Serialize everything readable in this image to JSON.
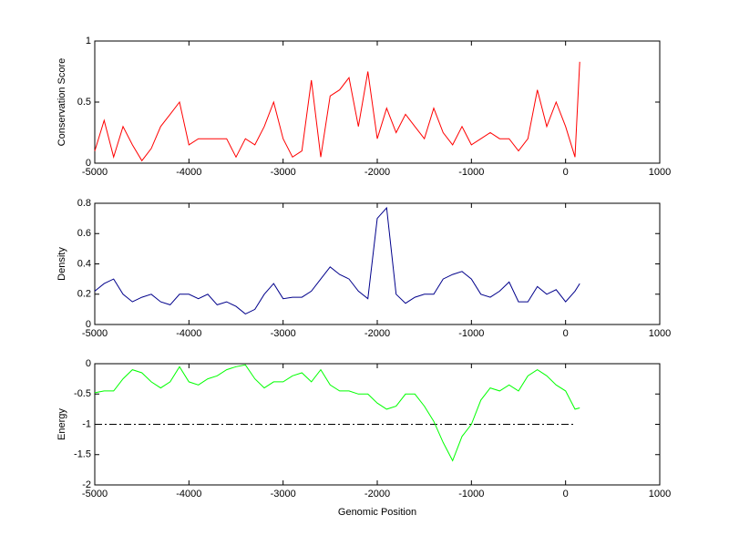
{
  "chart_data": [
    {
      "type": "line",
      "ylabel": "Conservation Score",
      "x": [
        -5000,
        -4900,
        -4800,
        -4700,
        -4600,
        -4500,
        -4400,
        -4300,
        -4200,
        -4100,
        -4000,
        -3900,
        -3800,
        -3700,
        -3600,
        -3500,
        -3400,
        -3300,
        -3200,
        -3100,
        -3000,
        -2900,
        -2800,
        -2700,
        -2600,
        -2500,
        -2400,
        -2300,
        -2200,
        -2100,
        -2000,
        -1900,
        -1800,
        -1700,
        -1600,
        -1500,
        -1400,
        -1300,
        -1200,
        -1100,
        -1000,
        -900,
        -800,
        -700,
        -600,
        -500,
        -400,
        -300,
        -200,
        -100,
        0,
        100,
        150
      ],
      "series": [
        {
          "color": "#ff0000",
          "values": [
            0.1,
            0.35,
            0.05,
            0.3,
            0.15,
            0.02,
            0.12,
            0.3,
            0.4,
            0.5,
            0.15,
            0.2,
            0.2,
            0.2,
            0.2,
            0.05,
            0.2,
            0.15,
            0.3,
            0.5,
            0.2,
            0.05,
            0.1,
            0.68,
            0.05,
            0.55,
            0.6,
            0.7,
            0.3,
            0.75,
            0.2,
            0.45,
            0.25,
            0.4,
            0.3,
            0.2,
            0.45,
            0.25,
            0.15,
            0.3,
            0.15,
            0.2,
            0.25,
            0.2,
            0.2,
            0.1,
            0.2,
            0.6,
            0.3,
            0.5,
            0.3,
            0.05,
            0.83
          ]
        }
      ],
      "xlim": [
        -5000,
        1000
      ],
      "xticks": [
        -5000,
        -4000,
        -3000,
        -2000,
        -1000,
        0,
        1000
      ],
      "ylim": [
        0,
        1
      ],
      "yticks": [
        0,
        0.5,
        1
      ]
    },
    {
      "type": "line",
      "ylabel": "Density",
      "x": [
        -5000,
        -4900,
        -4800,
        -4700,
        -4600,
        -4500,
        -4400,
        -4300,
        -4200,
        -4100,
        -4000,
        -3900,
        -3800,
        -3700,
        -3600,
        -3500,
        -3400,
        -3300,
        -3200,
        -3100,
        -3000,
        -2900,
        -2800,
        -2700,
        -2600,
        -2500,
        -2400,
        -2300,
        -2200,
        -2100,
        -2000,
        -1900,
        -1800,
        -1700,
        -1600,
        -1500,
        -1400,
        -1300,
        -1200,
        -1100,
        -1000,
        -900,
        -800,
        -700,
        -600,
        -500,
        -400,
        -300,
        -200,
        -100,
        0,
        100,
        150
      ],
      "series": [
        {
          "color": "#00008b",
          "values": [
            0.22,
            0.27,
            0.3,
            0.2,
            0.15,
            0.18,
            0.2,
            0.15,
            0.13,
            0.2,
            0.2,
            0.17,
            0.2,
            0.13,
            0.15,
            0.12,
            0.07,
            0.1,
            0.2,
            0.27,
            0.17,
            0.18,
            0.18,
            0.22,
            0.3,
            0.38,
            0.33,
            0.3,
            0.22,
            0.17,
            0.7,
            0.77,
            0.2,
            0.14,
            0.18,
            0.2,
            0.2,
            0.3,
            0.33,
            0.35,
            0.3,
            0.2,
            0.18,
            0.22,
            0.28,
            0.15,
            0.15,
            0.25,
            0.2,
            0.23,
            0.15,
            0.22,
            0.27
          ]
        }
      ],
      "xlim": [
        -5000,
        1000
      ],
      "xticks": [
        -5000,
        -4000,
        -3000,
        -2000,
        -1000,
        0,
        1000
      ],
      "ylim": [
        0,
        0.8
      ],
      "yticks": [
        0,
        0.2,
        0.4,
        0.6,
        0.8
      ]
    },
    {
      "type": "line",
      "ylabel": "Energy",
      "xlabel": "Genomic Position",
      "x": [
        -5000,
        -4900,
        -4800,
        -4700,
        -4600,
        -4500,
        -4400,
        -4300,
        -4200,
        -4100,
        -4000,
        -3900,
        -3800,
        -3700,
        -3600,
        -3500,
        -3400,
        -3300,
        -3200,
        -3100,
        -3000,
        -2900,
        -2800,
        -2700,
        -2600,
        -2500,
        -2400,
        -2300,
        -2200,
        -2100,
        -2000,
        -1900,
        -1800,
        -1700,
        -1600,
        -1500,
        -1400,
        -1300,
        -1200,
        -1100,
        -1000,
        -900,
        -800,
        -700,
        -600,
        -500,
        -400,
        -300,
        -200,
        -100,
        0,
        100,
        150
      ],
      "series": [
        {
          "color": "#00ff00",
          "values": [
            -0.48,
            -0.45,
            -0.45,
            -0.25,
            -0.1,
            -0.15,
            -0.3,
            -0.4,
            -0.3,
            -0.05,
            -0.3,
            -0.35,
            -0.25,
            -0.2,
            -0.1,
            -0.05,
            -0.02,
            -0.25,
            -0.4,
            -0.3,
            -0.3,
            -0.2,
            -0.15,
            -0.3,
            -0.1,
            -0.35,
            -0.45,
            -0.45,
            -0.5,
            -0.5,
            -0.65,
            -0.75,
            -0.7,
            -0.5,
            -0.5,
            -0.7,
            -0.95,
            -1.3,
            -1.6,
            -1.2,
            -1.0,
            -0.6,
            -0.4,
            -0.45,
            -0.35,
            -0.45,
            -0.2,
            -0.1,
            -0.2,
            -0.35,
            -0.45,
            -0.75,
            -0.73
          ]
        }
      ],
      "hline": {
        "y": -1,
        "x": [
          -5000,
          100
        ],
        "color": "#000000"
      },
      "xlim": [
        -5000,
        1000
      ],
      "xticks": [
        -5000,
        -4000,
        -3000,
        -2000,
        -1000,
        0,
        1000
      ],
      "ylim": [
        -2,
        0
      ],
      "yticks": [
        -2,
        -1.5,
        -1,
        -0.5,
        0
      ]
    }
  ]
}
